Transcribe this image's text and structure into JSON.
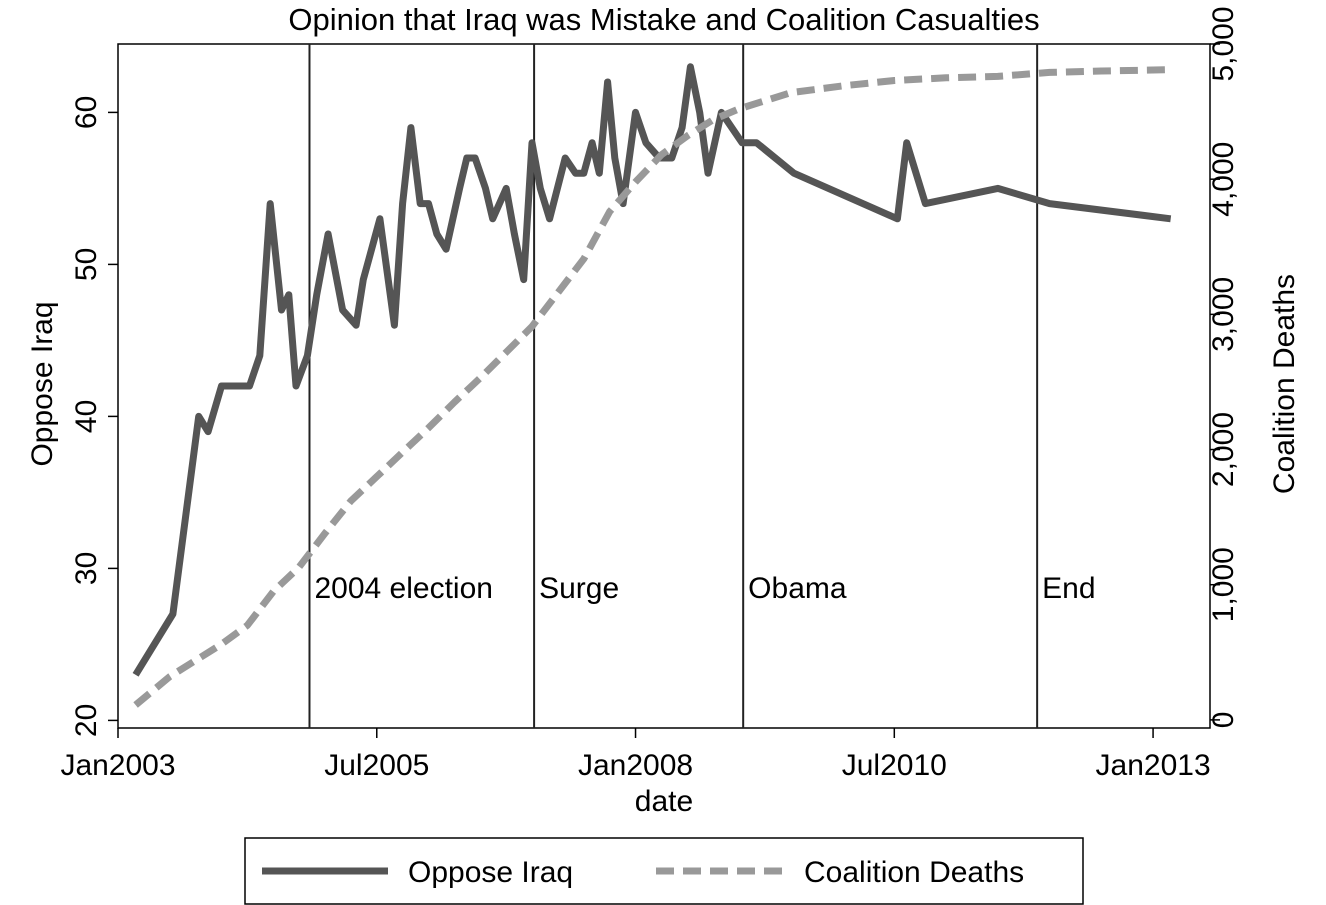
{
  "chart_data": {
    "type": "line",
    "title": "Opinion that Iraq was Mistake and Coalition Casualties",
    "xlabel": "date",
    "ylabel": "Oppose Iraq",
    "y2label": "Coalition Deaths",
    "xlim": [
      2003.0,
      2013.55
    ],
    "ylim": [
      19.5,
      64.5
    ],
    "y2lim": [
      -60,
      5000
    ],
    "x_ticks": [
      {
        "value": 2003.0,
        "label": "Jan2003"
      },
      {
        "value": 2005.5,
        "label": "Jul2005"
      },
      {
        "value": 2008.0,
        "label": "Jan2008"
      },
      {
        "value": 2010.5,
        "label": "Jul2010"
      },
      {
        "value": 2013.0,
        "label": "Jan2013"
      }
    ],
    "y_ticks": [
      {
        "value": 20,
        "label": "20"
      },
      {
        "value": 30,
        "label": "30"
      },
      {
        "value": 40,
        "label": "40"
      },
      {
        "value": 50,
        "label": "50"
      },
      {
        "value": 60,
        "label": "60"
      }
    ],
    "y2_ticks": [
      {
        "value": 0,
        "label": "0"
      },
      {
        "value": 1000,
        "label": "1,000"
      },
      {
        "value": 2000,
        "label": "2,000"
      },
      {
        "value": 3000,
        "label": "3,000"
      },
      {
        "value": 4000,
        "label": "4,000"
      },
      {
        "value": 5000,
        "label": "5,000"
      }
    ],
    "events": [
      {
        "x": 2004.85,
        "label": "2004 election"
      },
      {
        "x": 2007.02,
        "label": "Surge"
      },
      {
        "x": 2009.04,
        "label": "Obama"
      },
      {
        "x": 2011.88,
        "label": "End"
      }
    ],
    "legend": {
      "position": "bottom"
    },
    "grid": false,
    "series": [
      {
        "name": "Oppose Iraq",
        "axis": "left",
        "color": "#555555",
        "style": "solid",
        "x": [
          2003.17,
          2003.53,
          2003.78,
          2003.87,
          2004.0,
          2004.27,
          2004.37,
          2004.47,
          2004.58,
          2004.65,
          2004.72,
          2004.83,
          2004.92,
          2005.03,
          2005.17,
          2005.3,
          2005.37,
          2005.45,
          2005.53,
          2005.67,
          2005.75,
          2005.83,
          2005.92,
          2006.0,
          2006.08,
          2006.17,
          2006.3,
          2006.37,
          2006.45,
          2006.55,
          2006.62,
          2006.75,
          2006.83,
          2006.92,
          2007.0,
          2007.08,
          2007.17,
          2007.32,
          2007.42,
          2007.5,
          2007.58,
          2007.65,
          2007.73,
          2007.8,
          2007.88,
          2008.0,
          2008.1,
          2008.23,
          2008.35,
          2008.45,
          2008.53,
          2008.62,
          2008.7,
          2008.83,
          2009.03,
          2009.17,
          2009.53,
          2010.53,
          2010.62,
          2010.8,
          2011.5,
          2012.0,
          2013.17
        ],
        "values": [
          23,
          27,
          40,
          39,
          42,
          42,
          44,
          54,
          47,
          48,
          42,
          44,
          48,
          52,
          47,
          46,
          49,
          51,
          53,
          46,
          54,
          59,
          54,
          54,
          52,
          51,
          55,
          57,
          57,
          55,
          53,
          55,
          52,
          49,
          58,
          55,
          53,
          57,
          56,
          56,
          58,
          56,
          62,
          57,
          54,
          60,
          58,
          57,
          57,
          59,
          63,
          60,
          56,
          60,
          58,
          58,
          56,
          53,
          58,
          54,
          55,
          54,
          53
        ]
      },
      {
        "name": "Coalition Deaths",
        "axis": "right",
        "color": "#999999",
        "style": "dashed",
        "x": [
          2003.17,
          2003.5,
          2003.75,
          2004.0,
          2004.25,
          2004.5,
          2004.75,
          2005.0,
          2005.25,
          2005.5,
          2005.75,
          2006.0,
          2006.25,
          2006.5,
          2006.75,
          2007.0,
          2007.25,
          2007.5,
          2007.75,
          2008.0,
          2008.25,
          2008.5,
          2008.75,
          2009.0,
          2009.25,
          2009.5,
          2010.0,
          2010.5,
          2011.0,
          2011.5,
          2012.0,
          2012.5,
          2013.17
        ],
        "values": [
          110,
          320,
          440,
          560,
          700,
          950,
          1130,
          1380,
          1620,
          1800,
          1980,
          2160,
          2350,
          2530,
          2720,
          2910,
          3160,
          3410,
          3760,
          3980,
          4180,
          4320,
          4440,
          4520,
          4580,
          4640,
          4690,
          4730,
          4750,
          4760,
          4790,
          4800,
          4810
        ]
      }
    ]
  }
}
